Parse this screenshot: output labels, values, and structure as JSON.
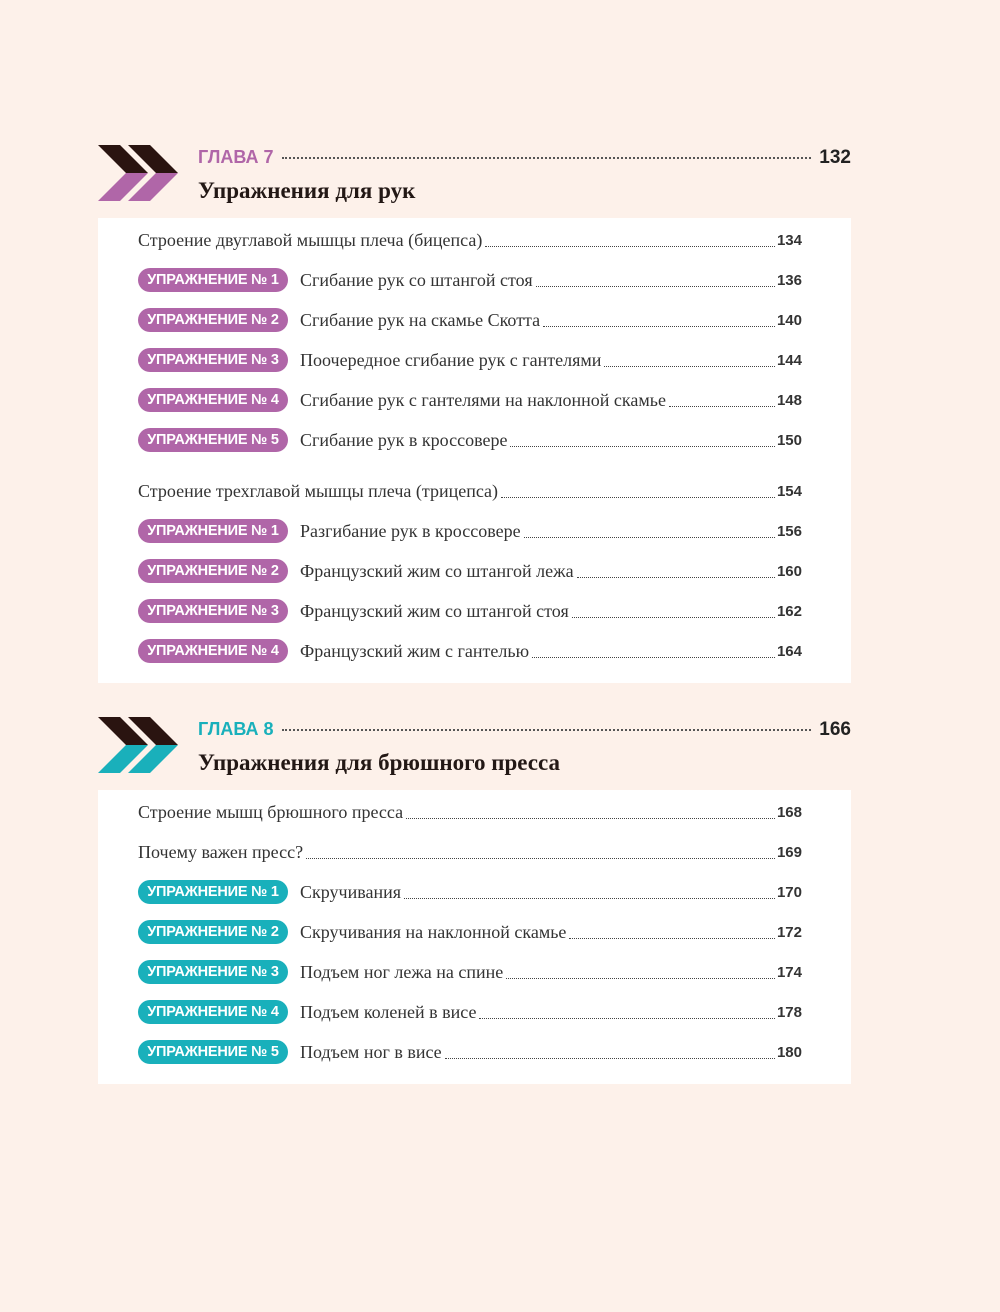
{
  "chapters": [
    {
      "label": "ГЛАВА 7",
      "page": 132,
      "title": "Упражнения для рук",
      "entries": [
        {
          "text": "Строение двуглавой мышцы плеча (бицепса)",
          "page": 134
        },
        {
          "badge": "УПРАЖНЕНИЕ № 1",
          "text": "Сгибание рук со штангой стоя",
          "page": 136
        },
        {
          "badge": "УПРАЖНЕНИЕ № 2",
          "text": "Сгибание рук на скамье Скотта",
          "page": 140
        },
        {
          "badge": "УПРАЖНЕНИЕ № 3",
          "text": "Поочередное сгибание рук с гантелями",
          "page": 144
        },
        {
          "badge": "УПРАЖНЕНИЕ № 4",
          "text": "Сгибание рук с гантелями на наклонной скамье",
          "page": 148
        },
        {
          "badge": "УПРАЖНЕНИЕ № 5",
          "text": "Сгибание рук в кроссовере",
          "page": 150
        },
        {
          "text": "Строение трехглавой мышцы плеча (трицепса)",
          "page": 154
        },
        {
          "badge": "УПРАЖНЕНИЕ № 1",
          "text": "Разгибание рук в кроссовере",
          "page": 156
        },
        {
          "badge": "УПРАЖНЕНИЕ № 2",
          "text": "Французский жим со штангой лежа",
          "page": 160
        },
        {
          "badge": "УПРАЖНЕНИЕ № 3",
          "text": "Французский жим со штангой стоя",
          "page": 162
        },
        {
          "badge": "УПРАЖНЕНИЕ № 4",
          "text": "Французский жим с гантелью",
          "page": 164
        }
      ]
    },
    {
      "label": "ГЛАВА 8",
      "page": 166,
      "title": "Упражнения для брюшного пресса",
      "entries": [
        {
          "text": "Строение мышц брюшного пресса",
          "page": 168
        },
        {
          "text": "Почему важен пресс?",
          "page": 169
        },
        {
          "badge": "УПРАЖНЕНИЕ № 1",
          "text": "Скручивания",
          "page": 170
        },
        {
          "badge": "УПРАЖНЕНИЕ № 2",
          "text": "Скручивания на наклонной скамье",
          "page": 172
        },
        {
          "badge": "УПРАЖНЕНИЕ № 3",
          "text": "Подъем ног лежа на спине",
          "page": 174
        },
        {
          "badge": "УПРАЖНЕНИЕ № 4",
          "text": "Подъем коленей в висе",
          "page": 178
        },
        {
          "badge": "УПРАЖНЕНИЕ № 5",
          "text": "Подъем ног в висе",
          "page": 180
        }
      ]
    }
  ]
}
